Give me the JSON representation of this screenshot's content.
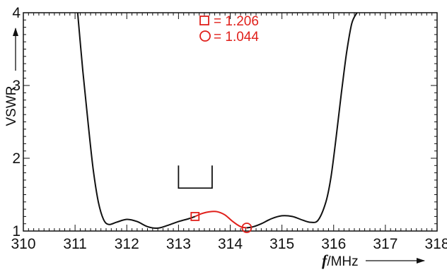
{
  "chart_data": {
    "type": "line",
    "xlabel_italic": "f",
    "xlabel_rest": "/MHz",
    "ylabel": "VSWR",
    "xlim": [
      310,
      318
    ],
    "ylim": [
      1,
      4
    ],
    "xticks": [
      "310",
      "311",
      "312",
      "313",
      "314",
      "315",
      "316",
      "317",
      "318"
    ],
    "yticks": [
      "1",
      "2",
      "3",
      "4"
    ],
    "grid": false,
    "colors": {
      "main": "#111111",
      "highlight": "#e0201b",
      "bracket": "#111111"
    },
    "series": [
      {
        "color": "#111111",
        "points": [
          [
            311.05,
            4.0
          ],
          [
            311.15,
            3.2
          ],
          [
            311.25,
            2.5
          ],
          [
            311.35,
            1.85
          ],
          [
            311.45,
            1.4
          ],
          [
            311.55,
            1.16
          ],
          [
            311.65,
            1.09
          ],
          [
            311.8,
            1.12
          ],
          [
            312.0,
            1.16
          ],
          [
            312.2,
            1.13
          ],
          [
            312.4,
            1.06
          ],
          [
            312.6,
            1.04
          ],
          [
            312.8,
            1.08
          ],
          [
            313.0,
            1.13
          ],
          [
            313.2,
            1.17
          ],
          [
            313.32,
            1.2
          ]
        ]
      },
      {
        "color": "#e0201b",
        "points": [
          [
            313.32,
            1.2
          ],
          [
            313.45,
            1.24
          ],
          [
            313.6,
            1.265
          ],
          [
            313.75,
            1.265
          ],
          [
            313.9,
            1.22
          ],
          [
            314.05,
            1.13
          ],
          [
            314.2,
            1.06
          ],
          [
            314.32,
            1.044
          ]
        ]
      },
      {
        "color": "#111111",
        "points": [
          [
            314.32,
            1.044
          ],
          [
            314.45,
            1.06
          ],
          [
            314.6,
            1.1
          ],
          [
            314.8,
            1.17
          ],
          [
            315.0,
            1.21
          ],
          [
            315.2,
            1.2
          ],
          [
            315.4,
            1.15
          ],
          [
            315.55,
            1.12
          ],
          [
            315.7,
            1.15
          ],
          [
            315.85,
            1.4
          ],
          [
            315.95,
            1.75
          ],
          [
            316.05,
            2.3
          ],
          [
            316.15,
            2.9
          ],
          [
            316.25,
            3.45
          ],
          [
            316.35,
            3.85
          ],
          [
            316.45,
            4.0
          ]
        ]
      }
    ],
    "markers": [
      {
        "shape": "square",
        "x": 313.32,
        "y": 1.2
      },
      {
        "shape": "circle",
        "x": 314.32,
        "y": 1.044
      }
    ],
    "bracket": {
      "x_start": 313.0,
      "x_end": 313.65,
      "y_top": 1.9,
      "y_bottom": 1.59
    },
    "legend": {
      "placement": "top-center",
      "entries": [
        {
          "shape": "square",
          "value": "= 1.206"
        },
        {
          "shape": "circle",
          "value": "= 1.044"
        }
      ]
    }
  }
}
